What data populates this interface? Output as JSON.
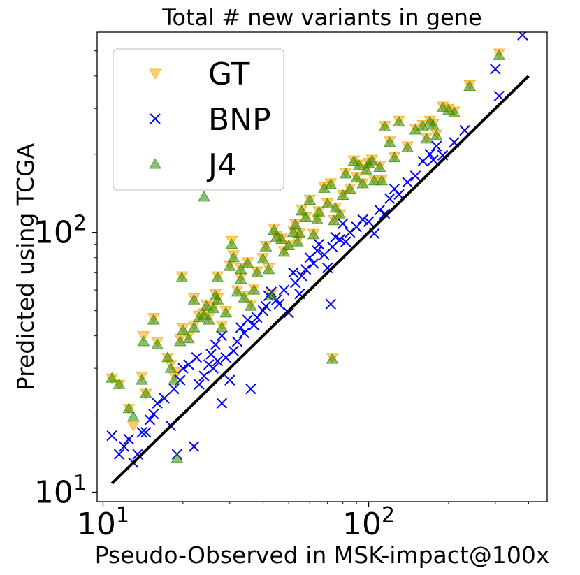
{
  "chart_data": {
    "type": "scatter",
    "title": "Total # new variants in gene",
    "xlabel": "Pseudo-Observed in MSK-impact@100x",
    "ylabel": "Predicted using TCGA",
    "xscale": "log",
    "yscale": "log",
    "xlim": [
      9.5,
      470
    ],
    "ylim": [
      9.2,
      590
    ],
    "grid": false,
    "legend_position": "top-left",
    "xticks": [
      {
        "base": "10",
        "exp": "1",
        "value": 10
      },
      {
        "base": "10",
        "exp": "2",
        "value": 100
      }
    ],
    "yticks": [
      {
        "base": "10",
        "exp": "1",
        "value": 10
      },
      {
        "base": "10",
        "exp": "2",
        "value": 100
      }
    ],
    "identity_line": {
      "x": [
        10.8,
        400
      ],
      "y": [
        10.8,
        400
      ],
      "color": "#000000"
    },
    "series": [
      {
        "name": "GT",
        "marker": "triangle-down",
        "color": "#FFA500",
        "points": [
          [
            10.8,
            27.5
          ],
          [
            11.5,
            26
          ],
          [
            12.5,
            21
          ],
          [
            13,
            18
          ],
          [
            14,
            28
          ],
          [
            14.5,
            24
          ],
          [
            14.2,
            40
          ],
          [
            15.5,
            47
          ],
          [
            16,
            38
          ],
          [
            17.5,
            33
          ],
          [
            18,
            31
          ],
          [
            18.5,
            28
          ],
          [
            19,
            29
          ],
          [
            19.5,
            39
          ],
          [
            20,
            43
          ],
          [
            19.8,
            68
          ],
          [
            21,
            40
          ],
          [
            22,
            44
          ],
          [
            22,
            56
          ],
          [
            23,
            48
          ],
          [
            24,
            49
          ],
          [
            24.5,
            53
          ],
          [
            25,
            47
          ],
          [
            26,
            52
          ],
          [
            26.5,
            58
          ],
          [
            27,
            56
          ],
          [
            27,
            68
          ],
          [
            28,
            44
          ],
          [
            29,
            50
          ],
          [
            30,
            75
          ],
          [
            30.5,
            93
          ],
          [
            31,
            82
          ],
          [
            32,
            60
          ],
          [
            33,
            67
          ],
          [
            33,
            73
          ],
          [
            34,
            57
          ],
          [
            35,
            77
          ],
          [
            36,
            53
          ],
          [
            37,
            61
          ],
          [
            38,
            71
          ],
          [
            40,
            80
          ],
          [
            41,
            89
          ],
          [
            42,
            73
          ],
          [
            43,
            58
          ],
          [
            44,
            104
          ],
          [
            45,
            97
          ],
          [
            47,
            95
          ],
          [
            48,
            85
          ],
          [
            50,
            90
          ],
          [
            52,
            102
          ],
          [
            53,
            108
          ],
          [
            54,
            93
          ],
          [
            55,
            100
          ],
          [
            56,
            123
          ],
          [
            58,
            115
          ],
          [
            60,
            134
          ],
          [
            62,
            99
          ],
          [
            64,
            113
          ],
          [
            65,
            121
          ],
          [
            68,
            150
          ],
          [
            70,
            130
          ],
          [
            72,
            155
          ],
          [
            73,
            33
          ],
          [
            74,
            112
          ],
          [
            75,
            125
          ],
          [
            78,
            118
          ],
          [
            80,
            140
          ],
          [
            82,
            170
          ],
          [
            85,
            148
          ],
          [
            88,
            190
          ],
          [
            90,
            164
          ],
          [
            92,
            183
          ],
          [
            95,
            155
          ],
          [
            98,
            176
          ],
          [
            100,
            186
          ],
          [
            103,
            191
          ],
          [
            105,
            160
          ],
          [
            110,
            180
          ],
          [
            112,
            160
          ],
          [
            115,
            258
          ],
          [
            120,
            225
          ],
          [
            125,
            196
          ],
          [
            130,
            270
          ],
          [
            140,
            215
          ],
          [
            150,
            252
          ],
          [
            160,
            260
          ],
          [
            165,
            232
          ],
          [
            170,
            270
          ],
          [
            175,
            262
          ],
          [
            180,
            239
          ],
          [
            190,
            306
          ],
          [
            200,
            300
          ],
          [
            210,
            293
          ],
          [
            240,
            370
          ],
          [
            300,
            660
          ],
          [
            310,
            490
          ],
          [
            380,
            690
          ]
        ]
      },
      {
        "name": "BNP",
        "marker": "x",
        "color": "#0000FF",
        "points": [
          [
            10.8,
            16.5
          ],
          [
            11.5,
            14
          ],
          [
            12,
            15
          ],
          [
            12.5,
            16
          ],
          [
            13,
            13
          ],
          [
            13.5,
            14
          ],
          [
            14,
            17
          ],
          [
            14.5,
            17
          ],
          [
            15,
            19
          ],
          [
            15.5,
            20
          ],
          [
            16,
            22
          ],
          [
            17,
            23
          ],
          [
            18,
            18
          ],
          [
            18.5,
            25
          ],
          [
            19,
            14
          ],
          [
            19.5,
            27
          ],
          [
            20,
            30
          ],
          [
            21,
            31
          ],
          [
            22,
            15
          ],
          [
            22.5,
            33
          ],
          [
            23,
            26
          ],
          [
            24,
            28
          ],
          [
            25,
            31
          ],
          [
            25.5,
            34
          ],
          [
            26,
            30
          ],
          [
            26.5,
            37
          ],
          [
            27,
            32
          ],
          [
            28,
            40
          ],
          [
            28,
            22
          ],
          [
            29,
            33
          ],
          [
            30,
            27
          ],
          [
            31,
            35
          ],
          [
            32,
            38
          ],
          [
            33,
            43
          ],
          [
            34,
            41
          ],
          [
            35,
            46
          ],
          [
            36,
            25
          ],
          [
            37,
            44
          ],
          [
            38,
            47
          ],
          [
            40,
            50
          ],
          [
            41,
            52
          ],
          [
            42,
            57
          ],
          [
            43,
            59
          ],
          [
            45,
            55
          ],
          [
            46,
            53
          ],
          [
            48,
            60
          ],
          [
            50,
            49
          ],
          [
            52,
            70
          ],
          [
            53,
            64
          ],
          [
            55,
            58
          ],
          [
            56,
            68
          ],
          [
            58,
            72
          ],
          [
            60,
            80
          ],
          [
            62,
            76
          ],
          [
            64,
            85
          ],
          [
            65,
            90
          ],
          [
            68,
            82
          ],
          [
            70,
            73
          ],
          [
            72,
            53
          ],
          [
            73,
            88
          ],
          [
            75,
            96
          ],
          [
            78,
            94
          ],
          [
            80,
            108
          ],
          [
            82,
            92
          ],
          [
            85,
            100
          ],
          [
            90,
            105
          ],
          [
            95,
            112
          ],
          [
            100,
            110
          ],
          [
            105,
            99
          ],
          [
            110,
            122
          ],
          [
            115,
            118
          ],
          [
            120,
            135
          ],
          [
            125,
            147
          ],
          [
            130,
            140
          ],
          [
            140,
            156
          ],
          [
            150,
            165
          ],
          [
            160,
            188
          ],
          [
            170,
            200
          ],
          [
            175,
            190
          ],
          [
            180,
            215
          ],
          [
            190,
            198
          ],
          [
            210,
            222
          ],
          [
            230,
            247
          ],
          [
            300,
            425
          ],
          [
            310,
            335
          ],
          [
            380,
            575
          ]
        ]
      },
      {
        "name": "J4",
        "marker": "triangle-up",
        "color": "#2E8B00",
        "points": [
          [
            10.8,
            27.5
          ],
          [
            11.5,
            26
          ],
          [
            12.5,
            21
          ],
          [
            13,
            19.5
          ],
          [
            14,
            27
          ],
          [
            14.5,
            24
          ],
          [
            14.2,
            38
          ],
          [
            15.5,
            46
          ],
          [
            16,
            37
          ],
          [
            17.5,
            33
          ],
          [
            18,
            30
          ],
          [
            18.5,
            27
          ],
          [
            19,
            13.5
          ],
          [
            19.5,
            38
          ],
          [
            20,
            42
          ],
          [
            19.8,
            67
          ],
          [
            21,
            39
          ],
          [
            22,
            43
          ],
          [
            22,
            55
          ],
          [
            23,
            47
          ],
          [
            24,
            48
          ],
          [
            24,
            137
          ],
          [
            24.5,
            52
          ],
          [
            25,
            46
          ],
          [
            26,
            51
          ],
          [
            26.5,
            57
          ],
          [
            27,
            55
          ],
          [
            27,
            67
          ],
          [
            28,
            43
          ],
          [
            29,
            49
          ],
          [
            30,
            74
          ],
          [
            30.5,
            90
          ],
          [
            31,
            80
          ],
          [
            32,
            59
          ],
          [
            33,
            66
          ],
          [
            33,
            72
          ],
          [
            34,
            56
          ],
          [
            35,
            76
          ],
          [
            36,
            52
          ],
          [
            37,
            60
          ],
          [
            38,
            70
          ],
          [
            40,
            79
          ],
          [
            41,
            88
          ],
          [
            42,
            72
          ],
          [
            43,
            57
          ],
          [
            44,
            102
          ],
          [
            45,
            96
          ],
          [
            47,
            94
          ],
          [
            48,
            84
          ],
          [
            50,
            89
          ],
          [
            52,
            100
          ],
          [
            53,
            107
          ],
          [
            54,
            92
          ],
          [
            55,
            99
          ],
          [
            56,
            121
          ],
          [
            58,
            114
          ],
          [
            60,
            133
          ],
          [
            62,
            98
          ],
          [
            64,
            112
          ],
          [
            65,
            120
          ],
          [
            68,
            148
          ],
          [
            70,
            129
          ],
          [
            72,
            153
          ],
          [
            73,
            32.5
          ],
          [
            74,
            111
          ],
          [
            75,
            124
          ],
          [
            78,
            117
          ],
          [
            80,
            139
          ],
          [
            82,
            168
          ],
          [
            85,
            147
          ],
          [
            88,
            188
          ],
          [
            90,
            162
          ],
          [
            92,
            181
          ],
          [
            95,
            154
          ],
          [
            98,
            174
          ],
          [
            100,
            184
          ],
          [
            103,
            189
          ],
          [
            105,
            158
          ],
          [
            110,
            178
          ],
          [
            112,
            158
          ],
          [
            115,
            255
          ],
          [
            120,
            222
          ],
          [
            125,
            194
          ],
          [
            130,
            266
          ],
          [
            140,
            212
          ],
          [
            150,
            248
          ],
          [
            160,
            257
          ],
          [
            165,
            229
          ],
          [
            170,
            266
          ],
          [
            175,
            259
          ],
          [
            180,
            236
          ],
          [
            190,
            302
          ],
          [
            200,
            296
          ],
          [
            210,
            289
          ],
          [
            240,
            365
          ],
          [
            300,
            650
          ],
          [
            310,
            480
          ],
          [
            380,
            680
          ]
        ]
      }
    ]
  }
}
